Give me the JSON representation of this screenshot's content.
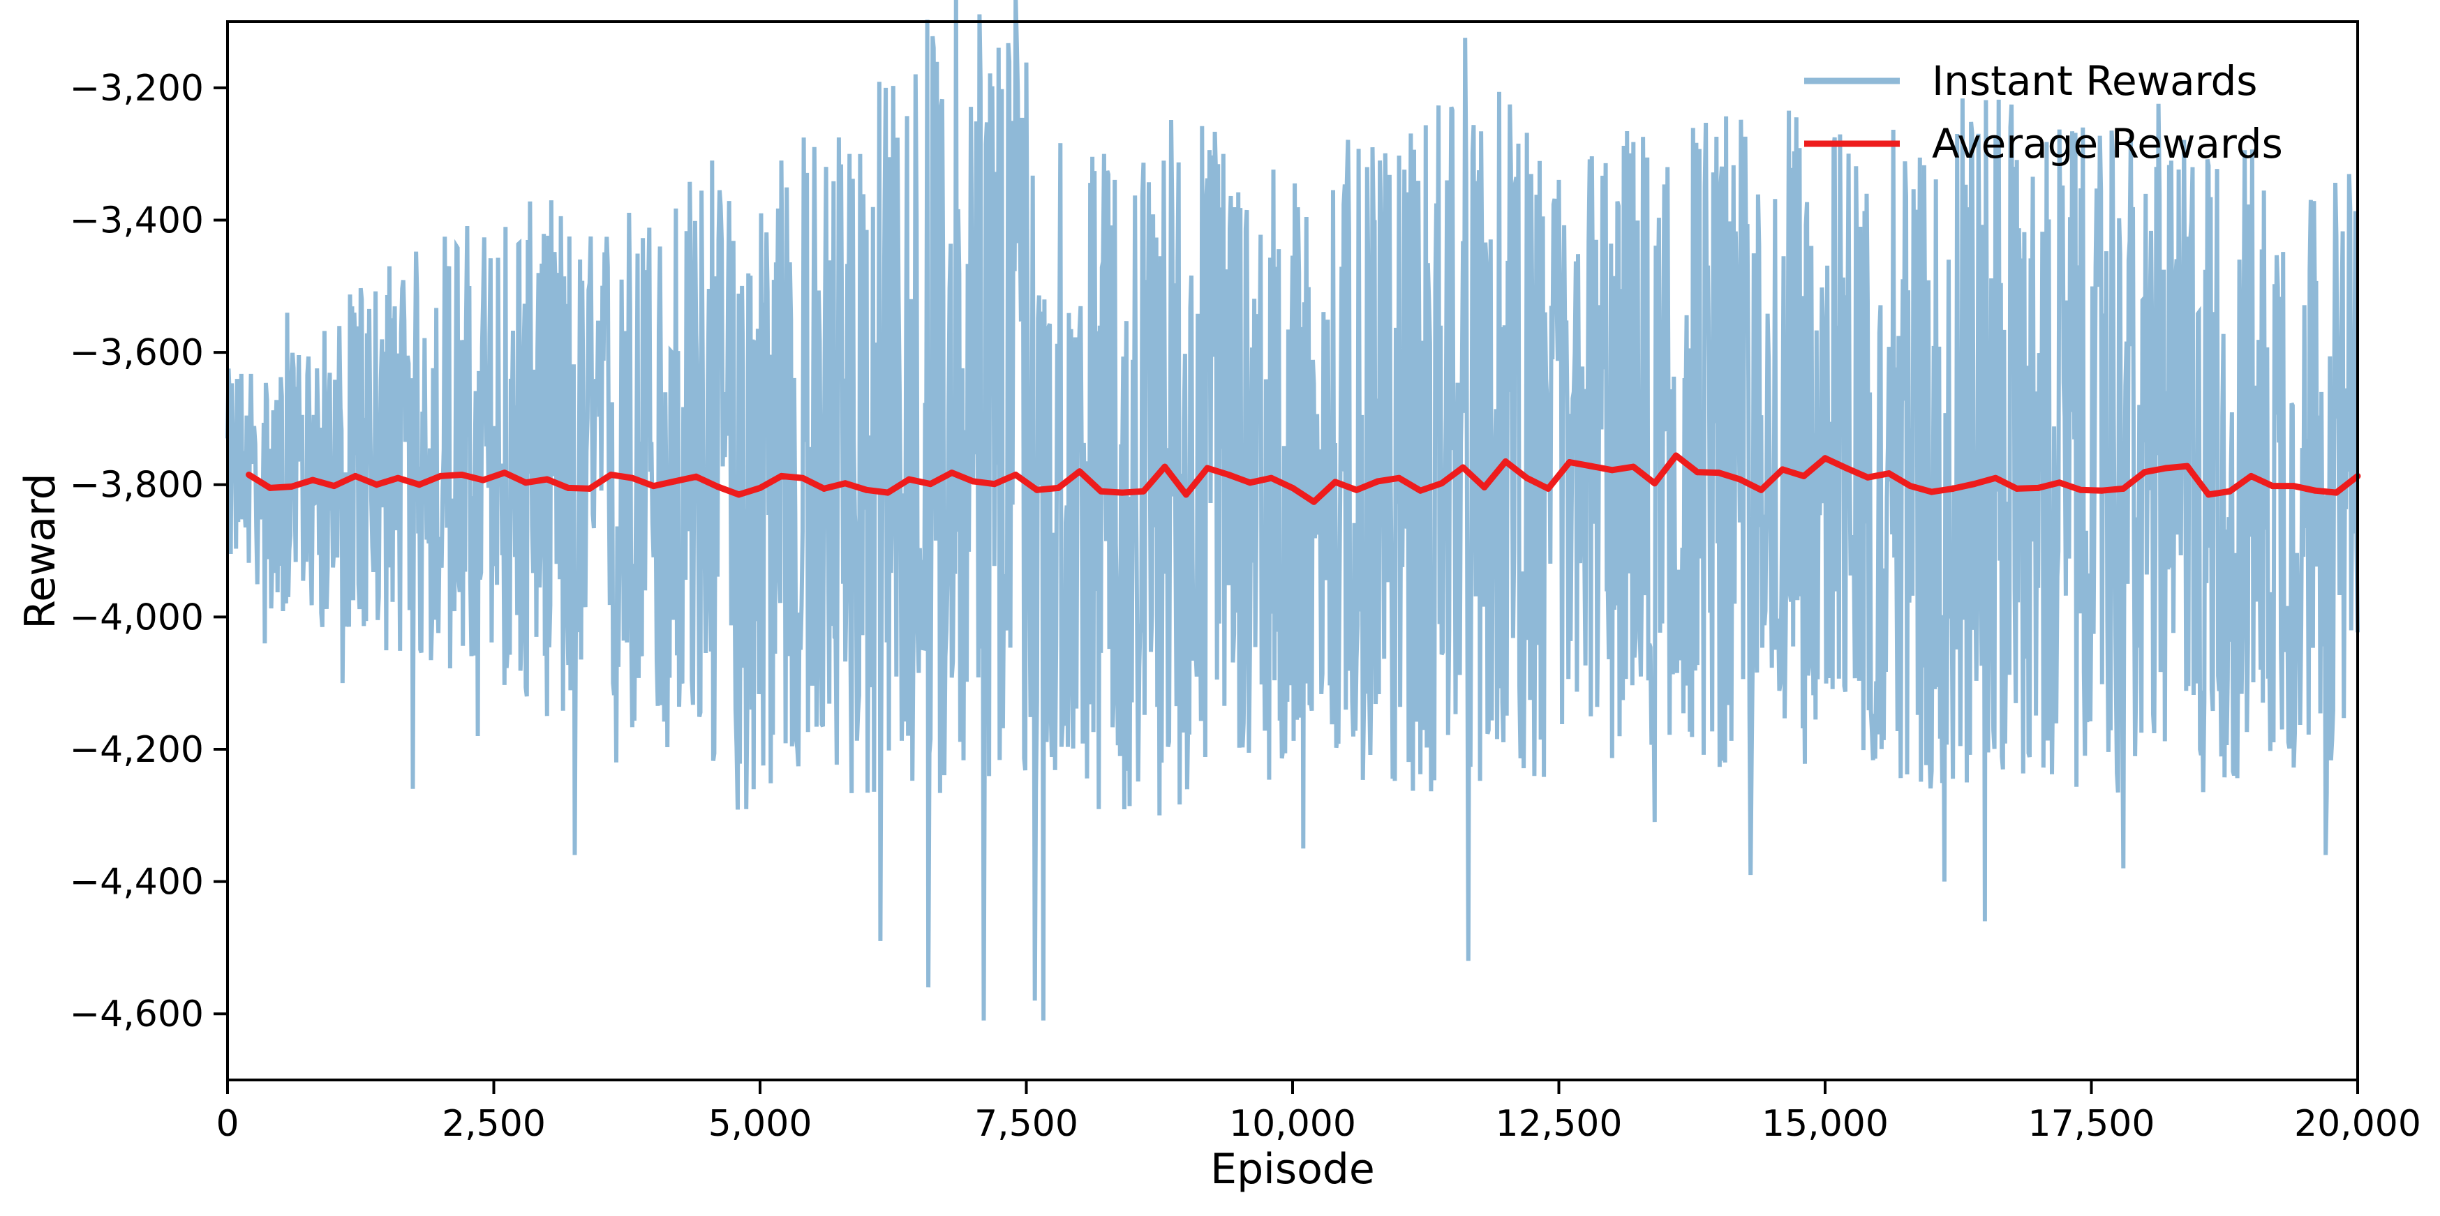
{
  "chart_data": {
    "type": "line",
    "title": "",
    "xlabel": "Episode",
    "ylabel": "Reward",
    "xlim": [
      0,
      20000
    ],
    "ylim": [
      -4700,
      -3100
    ],
    "xticks": [
      0,
      2500,
      5000,
      7500,
      10000,
      12500,
      15000,
      17500,
      20000
    ],
    "xtick_labels": [
      "0",
      "2,500",
      "5,000",
      "7,500",
      "10,000",
      "12,500",
      "15,000",
      "17,500",
      "20,000"
    ],
    "yticks": [
      -3200,
      -3400,
      -3600,
      -3800,
      -4000,
      -4200,
      -4400,
      -4600
    ],
    "ytick_labels": [
      "−3,200",
      "−3,400",
      "−3,600",
      "−3,800",
      "−4,000",
      "−4,200",
      "−4,400",
      "−4,600"
    ],
    "grid": false,
    "legend_position": "top-right",
    "series": [
      {
        "name": "Instant Rewards",
        "color": "#8fb9d7",
        "num_episodes": 20000,
        "envelope_x": [
          0,
          500,
          1000,
          1500,
          2000,
          2500,
          3000,
          3500,
          4000,
          4500,
          5000,
          5500,
          6000,
          6500,
          7000,
          7500,
          8000,
          8500,
          9000,
          9500,
          10000,
          10500,
          11000,
          11500,
          12000,
          12500,
          13000,
          13500,
          14000,
          14500,
          15000,
          15500,
          16000,
          16500,
          17000,
          17500,
          18000,
          18500,
          19000,
          19500,
          20000
        ],
        "envelope_max": [
          -3650,
          -3600,
          -3560,
          -3530,
          -3480,
          -3450,
          -3420,
          -3400,
          -3350,
          -3320,
          -3300,
          -3310,
          -3300,
          -3300,
          -3300,
          -3300,
          -3310,
          -3300,
          -3300,
          -3320,
          -3320,
          -3330,
          -3300,
          -3320,
          -3320,
          -3330,
          -3320,
          -3330,
          -3320,
          -3340,
          -3330,
          -3320,
          -3330,
          -3320,
          -3330,
          -3330,
          -3330,
          -3320,
          -3340,
          -3340,
          -3340
        ],
        "envelope_min": [
          -3950,
          -4000,
          -4050,
          -4150,
          -4180,
          -4200,
          -4250,
          -4200,
          -4250,
          -4280,
          -4300,
          -4350,
          -4450,
          -4520,
          -4610,
          -4600,
          -4300,
          -4350,
          -4380,
          -4300,
          -4300,
          -4350,
          -4300,
          -4520,
          -4350,
          -4300,
          -4300,
          -4350,
          -4360,
          -4380,
          -4300,
          -4300,
          -4400,
          -4450,
          -4350,
          -4380,
          -4350,
          -4350,
          -4330,
          -4300,
          -4300
        ],
        "spikes": [
          {
            "x": 350,
            "y": -4040
          },
          {
            "x": 560,
            "y": -3540
          },
          {
            "x": 1080,
            "y": -4100
          },
          {
            "x": 1190,
            "y": -3540
          },
          {
            "x": 1740,
            "y": -4260
          },
          {
            "x": 2080,
            "y": -3470
          },
          {
            "x": 2350,
            "y": -4180
          },
          {
            "x": 2920,
            "y": -3480
          },
          {
            "x": 3260,
            "y": -4360
          },
          {
            "x": 3650,
            "y": -4220
          },
          {
            "x": 4060,
            "y": -3440
          },
          {
            "x": 4550,
            "y": -3310
          },
          {
            "x": 5200,
            "y": -3310
          },
          {
            "x": 5840,
            "y": -3300
          },
          {
            "x": 6130,
            "y": -4490
          },
          {
            "x": 6580,
            "y": -4560
          },
          {
            "x": 7100,
            "y": -4610
          },
          {
            "x": 7580,
            "y": -4580
          },
          {
            "x": 7660,
            "y": -4610
          },
          {
            "x": 8230,
            "y": -3300
          },
          {
            "x": 8750,
            "y": -4300
          },
          {
            "x": 9350,
            "y": -3300
          },
          {
            "x": 10100,
            "y": -4350
          },
          {
            "x": 11450,
            "y": -3340
          },
          {
            "x": 11650,
            "y": -4520
          },
          {
            "x": 13400,
            "y": -4310
          },
          {
            "x": 14300,
            "y": -4390
          },
          {
            "x": 16120,
            "y": -4400
          },
          {
            "x": 16500,
            "y": -4460
          },
          {
            "x": 17800,
            "y": -4380
          },
          {
            "x": 18450,
            "y": -3320
          },
          {
            "x": 19700,
            "y": -4360
          }
        ]
      },
      {
        "name": "Average Rewards",
        "color": "#ee1c1c",
        "x": [
          200,
          400,
          600,
          800,
          1000,
          1200,
          1400,
          1600,
          1800,
          2000,
          2200,
          2400,
          2600,
          2800,
          3000,
          3200,
          3400,
          3600,
          3800,
          4000,
          4200,
          4400,
          4600,
          4800,
          5000,
          5200,
          5400,
          5600,
          5800,
          6000,
          6200,
          6400,
          6600,
          6800,
          7000,
          7200,
          7400,
          7600,
          7800,
          8000,
          8200,
          8400,
          8600,
          8800,
          9000,
          9200,
          9400,
          9600,
          9800,
          10000,
          10200,
          10400,
          10600,
          10800,
          11000,
          11200,
          11400,
          11600,
          11800,
          12000,
          12200,
          12400,
          12600,
          12800,
          13000,
          13200,
          13400,
          13600,
          13800,
          14000,
          14200,
          14400,
          14600,
          14800,
          15000,
          15200,
          15400,
          15600,
          15800,
          16000,
          16200,
          16400,
          16600,
          16800,
          17000,
          17200,
          17400,
          17600,
          17800,
          18000,
          18200,
          18400,
          18600,
          18800,
          19000,
          19200,
          19400,
          19600,
          19800,
          20000
        ],
        "y": [
          -3785,
          -3805,
          -3803,
          -3793,
          -3802,
          -3787,
          -3800,
          -3790,
          -3800,
          -3787,
          -3785,
          -3793,
          -3782,
          -3797,
          -3792,
          -3805,
          -3806,
          -3785,
          -3790,
          -3802,
          -3795,
          -3788,
          -3803,
          -3815,
          -3805,
          -3787,
          -3790,
          -3806,
          -3798,
          -3808,
          -3812,
          -3792,
          -3799,
          -3782,
          -3795,
          -3799,
          -3785,
          -3808,
          -3805,
          -3780,
          -3810,
          -3812,
          -3810,
          -3773,
          -3815,
          -3775,
          -3785,
          -3797,
          -3790,
          -3805,
          -3826,
          -3796,
          -3808,
          -3795,
          -3790,
          -3809,
          -3798,
          -3774,
          -3804,
          -3765,
          -3790,
          -3806,
          -3766,
          -3772,
          -3778,
          -3773,
          -3798,
          -3756,
          -3781,
          -3782,
          -3792,
          -3808,
          -3777,
          -3787,
          -3760,
          -3775,
          -3789,
          -3783,
          -3802,
          -3811,
          -3806,
          -3799,
          -3790,
          -3806,
          -3805,
          -3797,
          -3808,
          -3809,
          -3806,
          -3781,
          -3775,
          -3772,
          -3815,
          -3810,
          -3787,
          -3802,
          -3802,
          -3809,
          -3812,
          -3787
        ]
      }
    ]
  }
}
